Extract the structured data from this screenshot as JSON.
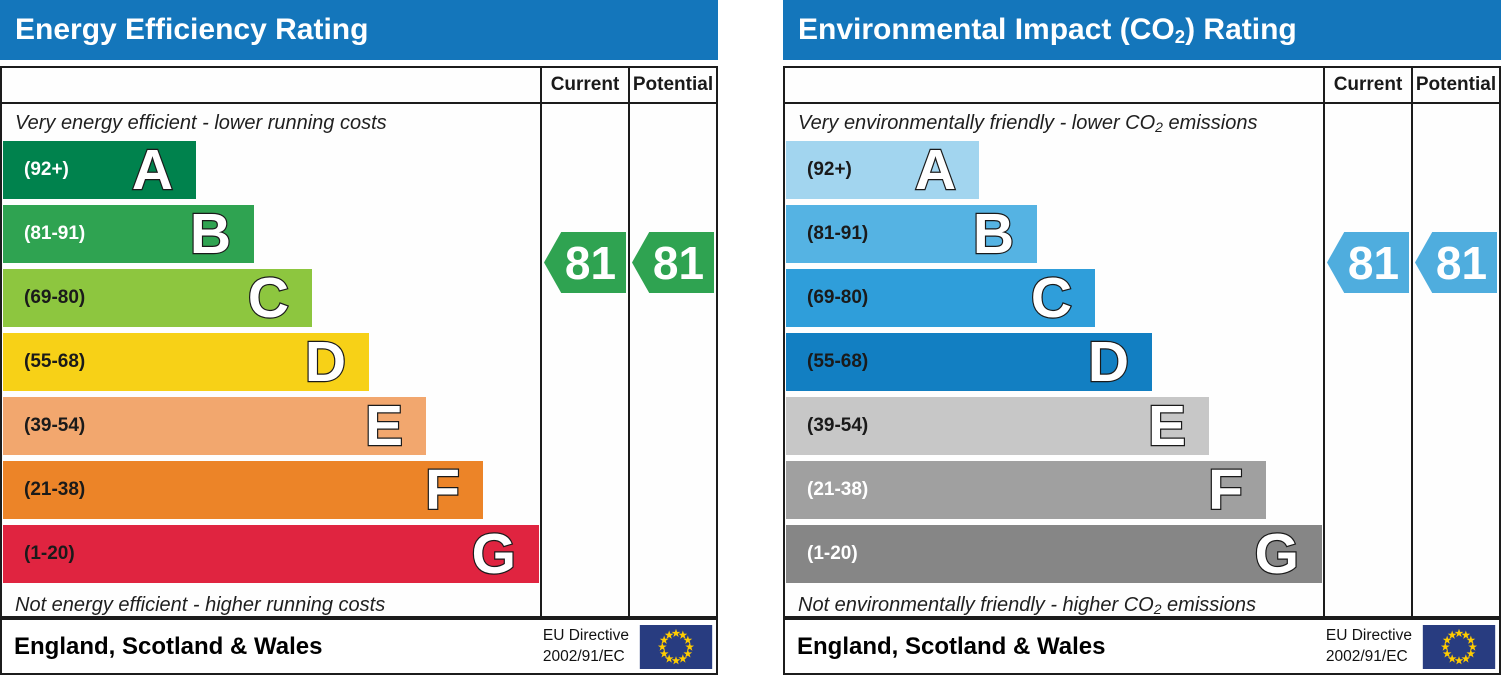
{
  "footer": {
    "region_label": "England, Scotland & Wales",
    "directive_line1": "EU Directive",
    "directive_line2": "2002/91/EC",
    "flag": {
      "bg": "#283c80",
      "star": "#ffcc00"
    }
  },
  "charts": [
    {
      "title_pre": "Energy Efficiency Rating",
      "title_sub": "",
      "title_post": "",
      "title_bg": "#1476bb",
      "columns": {
        "current": "Current",
        "potential": "Potential"
      },
      "top_caption_pre": "Very energy efficient - lower running costs",
      "top_caption_sub": "",
      "top_caption_post": "",
      "bottom_caption_pre": "Not energy efficient - higher running costs",
      "bottom_caption_sub": "",
      "bottom_caption_post": "",
      "current_value": "81",
      "potential_value": "81",
      "arrow_color": "#2fa351",
      "bands": [
        {
          "letter": "A",
          "range": "(92+)",
          "color": "#00824d",
          "range_color": "#ffffff"
        },
        {
          "letter": "B",
          "range": "(81-91)",
          "color": "#2fa351",
          "range_color": "#ffffff"
        },
        {
          "letter": "C",
          "range": "(69-80)",
          "color": "#8dc63f",
          "range_color": "#1a1a1a"
        },
        {
          "letter": "D",
          "range": "(55-68)",
          "color": "#f7d117",
          "range_color": "#1a1a1a"
        },
        {
          "letter": "E",
          "range": "(39-54)",
          "color": "#f2a76e",
          "range_color": "#1a1a1a"
        },
        {
          "letter": "F",
          "range": "(21-38)",
          "color": "#ec8428",
          "range_color": "#1a1a1a"
        },
        {
          "letter": "G",
          "range": "(1-20)",
          "color": "#e02440",
          "range_color": "#1a1a1a"
        }
      ]
    },
    {
      "title_pre": "Environmental Impact (CO",
      "title_sub": "2",
      "title_post": ") Rating",
      "title_bg": "#1476bb",
      "columns": {
        "current": "Current",
        "potential": "Potential"
      },
      "top_caption_pre": "Very environmentally friendly - lower CO",
      "top_caption_sub": "2",
      "top_caption_post": " emissions",
      "bottom_caption_pre": "Not environmentally friendly - higher CO",
      "bottom_caption_sub": "2",
      "bottom_caption_post": " emissions",
      "current_value": "81",
      "potential_value": "81",
      "arrow_color": "#4fadde",
      "bands": [
        {
          "letter": "A",
          "range": "(92+)",
          "color": "#a2d5ef",
          "range_color": "#1a1a1a"
        },
        {
          "letter": "B",
          "range": "(81-91)",
          "color": "#55b3e3",
          "range_color": "#1a1a1a"
        },
        {
          "letter": "C",
          "range": "(69-80)",
          "color": "#2f9eda",
          "range_color": "#1a1a1a"
        },
        {
          "letter": "D",
          "range": "(55-68)",
          "color": "#127fc2",
          "range_color": "#1a1a1a"
        },
        {
          "letter": "E",
          "range": "(39-54)",
          "color": "#c7c7c7",
          "range_color": "#1a1a1a"
        },
        {
          "letter": "F",
          "range": "(21-38)",
          "color": "#a0a0a0",
          "range_color": "#ffffff"
        },
        {
          "letter": "G",
          "range": "(1-20)",
          "color": "#868686",
          "range_color": "#ffffff"
        }
      ]
    }
  ],
  "chart_data": [
    {
      "type": "bar",
      "title": "Energy Efficiency Rating",
      "categories": [
        "A",
        "B",
        "C",
        "D",
        "E",
        "F",
        "G"
      ],
      "band_ranges": [
        "92+",
        "81-91",
        "69-80",
        "55-68",
        "39-54",
        "21-38",
        "1-20"
      ],
      "bar_lengths_relative": [
        1,
        2,
        3,
        4,
        5,
        6,
        7
      ],
      "current": 81,
      "potential": 81,
      "current_band": "B",
      "potential_band": "B",
      "annotation_top": "Very energy efficient - lower running costs",
      "annotation_bottom": "Not energy efficient - higher running costs",
      "region": "England, Scotland & Wales",
      "directive": "EU Directive 2002/91/EC",
      "legend_position": "right-columns: Current, Potential"
    },
    {
      "type": "bar",
      "title": "Environmental Impact (CO2) Rating",
      "categories": [
        "A",
        "B",
        "C",
        "D",
        "E",
        "F",
        "G"
      ],
      "band_ranges": [
        "92+",
        "81-91",
        "69-80",
        "55-68",
        "39-54",
        "21-38",
        "1-20"
      ],
      "bar_lengths_relative": [
        1,
        2,
        3,
        4,
        5,
        6,
        7
      ],
      "current": 81,
      "potential": 81,
      "current_band": "B",
      "potential_band": "B",
      "annotation_top": "Very environmentally friendly - lower CO2 emissions",
      "annotation_bottom": "Not environmentally friendly - higher CO2 emissions",
      "region": "England, Scotland & Wales",
      "directive": "EU Directive 2002/91/EC",
      "legend_position": "right-columns: Current, Potential"
    }
  ]
}
